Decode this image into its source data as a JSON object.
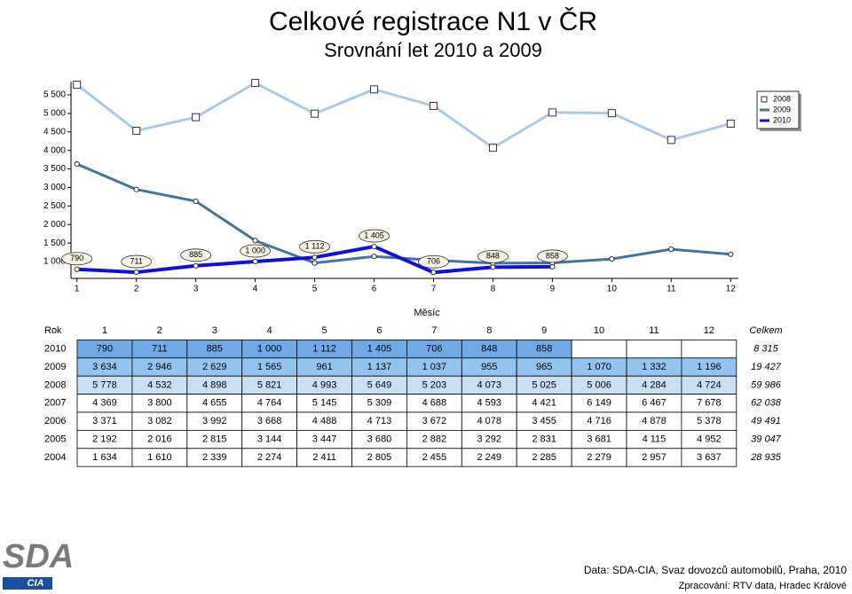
{
  "chart_data": {
    "type": "line",
    "title": "Celkové registrace N1 v ČR",
    "subtitle": "Srovnání let 2010 a 2009",
    "xlabel": "Měsíc",
    "x": [
      1,
      2,
      3,
      4,
      5,
      6,
      7,
      8,
      9,
      10,
      11,
      12
    ],
    "xlim": [
      0.9,
      12.13
    ],
    "xticks": [
      1,
      2,
      3,
      4,
      5,
      6,
      7,
      8,
      9,
      10,
      11,
      12
    ],
    "ylim": [
      545,
      5860
    ],
    "yticks": [
      {
        "value": 1000,
        "label": "1 000"
      },
      {
        "value": 1500,
        "label": "1 500"
      },
      {
        "value": 2000,
        "label": "2 000"
      },
      {
        "value": 2500,
        "label": "2 500"
      },
      {
        "value": 3000,
        "label": "3 000"
      },
      {
        "value": 3500,
        "label": "3 500"
      },
      {
        "value": 4000,
        "label": "4 000"
      },
      {
        "value": 4500,
        "label": "4 500"
      },
      {
        "value": 5000,
        "label": "5 000"
      },
      {
        "value": 5500,
        "label": "5 500"
      }
    ],
    "grid": false,
    "legend": "upper right",
    "series": [
      {
        "name": "2008",
        "color": "#a9c9e6",
        "marker": "square",
        "values": [
          5778,
          4532,
          4898,
          5821,
          4993,
          5649,
          5203,
          4073,
          5025,
          5006,
          4284,
          4724
        ]
      },
      {
        "name": "2009",
        "color": "#43739f",
        "marker": "circle",
        "values": [
          3634,
          2946,
          2629,
          1565,
          961,
          1137,
          1037,
          955,
          965,
          1070,
          1332,
          1196
        ]
      },
      {
        "name": "2010",
        "color": "#1010dd",
        "marker": "circle",
        "values": [
          790,
          711,
          885,
          1000,
          1112,
          1405,
          706,
          848,
          858,
          null,
          null,
          null
        ],
        "value_labels": [
          "790",
          "711",
          "885",
          "1 000",
          "1 112",
          "1 405",
          "706",
          "848",
          "858",
          null,
          null,
          null
        ]
      }
    ]
  },
  "table": {
    "header": [
      "Rok",
      "1",
      "2",
      "3",
      "4",
      "5",
      "6",
      "7",
      "8",
      "9",
      "10",
      "11",
      "12",
      "Celkem"
    ],
    "rows": [
      [
        "2010",
        "790",
        "711",
        "885",
        "1 000",
        "1 112",
        "1 405",
        "706",
        "848",
        "858",
        null,
        null,
        null,
        "8 315"
      ],
      [
        "2009",
        "3 634",
        "2 946",
        "2 629",
        "1 565",
        "961",
        "1 137",
        "1 037",
        "955",
        "965",
        "1 070",
        "1 332",
        "1 196",
        "19 427"
      ],
      [
        "2008",
        "5 778",
        "4 532",
        "4 898",
        "5 821",
        "4 993",
        "5 649",
        "5 203",
        "4 073",
        "5 025",
        "5 006",
        "4 284",
        "4 724",
        "59 986"
      ],
      [
        "2007",
        "4 369",
        "3 800",
        "4 655",
        "4 764",
        "5 145",
        "5 309",
        "4 688",
        "4 593",
        "4 421",
        "6 149",
        "6 467",
        "7 678",
        "62 038"
      ],
      [
        "2006",
        "3 371",
        "3 082",
        "3 992",
        "3 668",
        "4 488",
        "4 713",
        "3 672",
        "4 078",
        "3 455",
        "4 716",
        "4 878",
        "5 378",
        "49 491"
      ],
      [
        "2005",
        "2 192",
        "2 016",
        "2 815",
        "3 144",
        "3 447",
        "3 680",
        "2 882",
        "3 292",
        "2 831",
        "3 681",
        "4 115",
        "4 952",
        "39 047"
      ],
      [
        "2004",
        "1 634",
        "1 610",
        "2 339",
        "2 274",
        "2 411",
        "2 805",
        "2 455",
        "2 249",
        "2 285",
        "2 279",
        "2 957",
        "3 637",
        "28 935"
      ]
    ]
  },
  "logo": {
    "name": "SDA",
    "sub": "CIA"
  },
  "footer": {
    "source": "Data: SDA-CIA, Svaz dovozců automobilů, Praha, 2010",
    "credit": "Zpracování: RTV data, Hradec Králové"
  }
}
